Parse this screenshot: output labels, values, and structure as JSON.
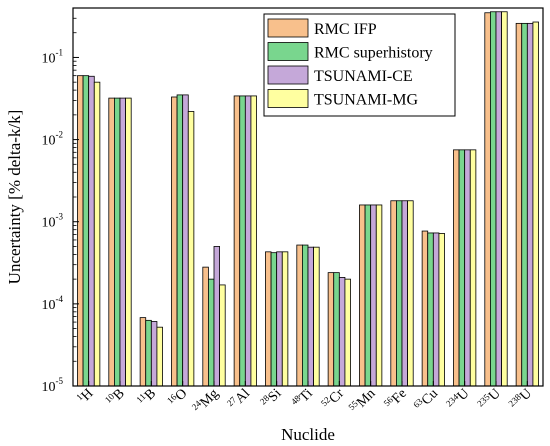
{
  "chart_data": {
    "type": "bar",
    "title": "",
    "xlabel": "Nuclide",
    "ylabel": "Uncertainty [% delta-k/k]",
    "yscale": "log",
    "ylim": [
      1e-05,
      0.4
    ],
    "y_tick_labels": [
      {
        "value": 1e-05,
        "base": "10",
        "exp": "-5"
      },
      {
        "value": 0.0001,
        "base": "10",
        "exp": "-4"
      },
      {
        "value": 0.001,
        "base": "10",
        "exp": "-3"
      },
      {
        "value": 0.01,
        "base": "10",
        "exp": "-2"
      },
      {
        "value": 0.1,
        "base": "10",
        "exp": "-1"
      }
    ],
    "categories": [
      {
        "mass": "1",
        "element": "H"
      },
      {
        "mass": "10",
        "element": "B"
      },
      {
        "mass": "11",
        "element": "B"
      },
      {
        "mass": "16",
        "element": "O"
      },
      {
        "mass": "24",
        "element": "Mg"
      },
      {
        "mass": "27",
        "element": "Al"
      },
      {
        "mass": "28",
        "element": "Si"
      },
      {
        "mass": "48",
        "element": "Ti"
      },
      {
        "mass": "52",
        "element": "Cr"
      },
      {
        "mass": "55",
        "element": "Mn"
      },
      {
        "mass": "56",
        "element": "Fe"
      },
      {
        "mass": "63",
        "element": "Cu"
      },
      {
        "mass": "234",
        "element": "U"
      },
      {
        "mass": "235",
        "element": "U"
      },
      {
        "mass": "238",
        "element": "U"
      }
    ],
    "series": [
      {
        "name": "RMC IFP",
        "color": "#F8C08C",
        "values": [
          0.06,
          0.032,
          6.8e-05,
          0.033,
          0.00028,
          0.034,
          0.00043,
          0.00052,
          0.00024,
          0.0016,
          0.0018,
          0.00077,
          0.0075,
          0.35,
          0.26
        ]
      },
      {
        "name": "RMC superhistory",
        "color": "#79D68E",
        "values": [
          0.06,
          0.032,
          6.3e-05,
          0.035,
          0.0002,
          0.034,
          0.00042,
          0.00052,
          0.00024,
          0.0016,
          0.0018,
          0.00073,
          0.0075,
          0.36,
          0.26
        ]
      },
      {
        "name": "TSUNAMI-CE",
        "color": "#C5A8D9",
        "values": [
          0.059,
          0.032,
          6.1e-05,
          0.035,
          0.0005,
          0.034,
          0.00043,
          0.00049,
          0.00021,
          0.0016,
          0.0018,
          0.00073,
          0.0075,
          0.36,
          0.26
        ]
      },
      {
        "name": "TSUNAMI-MG",
        "color": "#FFFFA0",
        "values": [
          0.05,
          0.032,
          5.2e-05,
          0.022,
          0.00017,
          0.034,
          0.00043,
          0.00049,
          0.0002,
          0.0016,
          0.0018,
          0.00072,
          0.0075,
          0.36,
          0.27
        ]
      }
    ],
    "legend_position": "top-right",
    "grid": false
  }
}
